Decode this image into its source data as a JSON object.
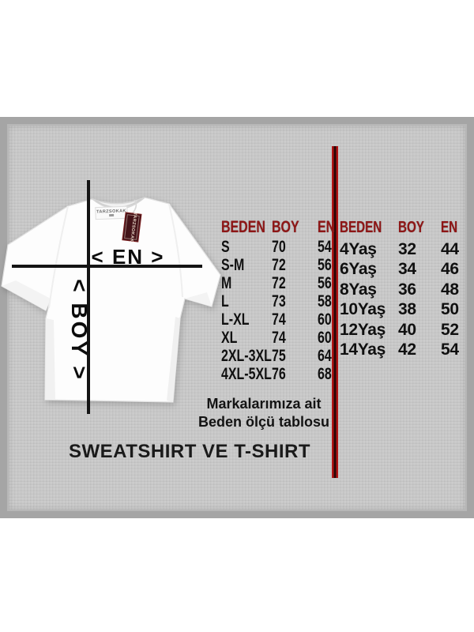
{
  "shirt": {
    "neck_label_text": "TARZSOKAK",
    "hang_tag_text": "TARZSOKAK",
    "width_label": "< EN >",
    "length_label": "< BOY >"
  },
  "tables": {
    "adult": {
      "headers": [
        "BEDEN",
        "BOY",
        "EN"
      ],
      "rows": [
        [
          "S",
          "70",
          "54"
        ],
        [
          "S-M",
          "72",
          "56"
        ],
        [
          "M",
          "72",
          "56"
        ],
        [
          "L",
          "73",
          "58"
        ],
        [
          "L-XL",
          "74",
          "60"
        ],
        [
          "XL",
          "74",
          "60"
        ],
        [
          "2XL-3XL",
          "75",
          "64"
        ],
        [
          "4XL-5XL",
          "76",
          "68"
        ]
      ]
    },
    "kids": {
      "headers": [
        "BEDEN",
        "BOY",
        "EN"
      ],
      "rows": [
        [
          "4Yaş",
          "32",
          "44"
        ],
        [
          "6Yaş",
          "34",
          "46"
        ],
        [
          "8Yaş",
          "36",
          "48"
        ],
        [
          "10Yaş",
          "38",
          "50"
        ],
        [
          "12Yaş",
          "40",
          "52"
        ],
        [
          "14Yaş",
          "42",
          "54"
        ]
      ]
    }
  },
  "captions": {
    "note_line1": "Markalarımıza ait",
    "note_line2": "Beden ölçü tablosu",
    "title": "SWEATSHIRT VE T-SHIRT"
  },
  "colors": {
    "header_red": "#8e1616",
    "divider_red": "#b11414",
    "line_black": "#141414",
    "panel_gray": "#c9c9c9",
    "panel_border": "#a5a5a5",
    "tag_maroon": "#431318"
  }
}
